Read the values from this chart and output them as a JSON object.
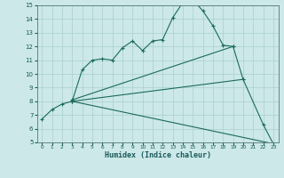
{
  "xlabel": "Humidex (Indice chaleur)",
  "ylabel": "",
  "xlim": [
    -0.5,
    23.5
  ],
  "ylim": [
    5,
    15
  ],
  "xticks": [
    0,
    1,
    2,
    3,
    4,
    5,
    6,
    7,
    8,
    9,
    10,
    11,
    12,
    13,
    14,
    15,
    16,
    17,
    18,
    19,
    20,
    21,
    22,
    23
  ],
  "yticks": [
    5,
    6,
    7,
    8,
    9,
    10,
    11,
    12,
    13,
    14,
    15
  ],
  "bg_color": "#cce8e8",
  "grid_color": "#aacfcf",
  "line_color": "#1a6b5a",
  "curve1_x": [
    0,
    1,
    2,
    3,
    4,
    5,
    6,
    7,
    8,
    9,
    10,
    11,
    12,
    13,
    14,
    15,
    16,
    17,
    18,
    19
  ],
  "curve1_y": [
    6.7,
    7.4,
    7.8,
    8.0,
    10.3,
    11.0,
    11.1,
    11.0,
    11.9,
    12.4,
    11.7,
    12.4,
    12.5,
    14.1,
    15.2,
    15.4,
    14.6,
    13.5,
    12.1,
    12.0
  ],
  "curve2_x": [
    3,
    23
  ],
  "curve2_y": [
    8.0,
    4.9
  ],
  "curve3_x": [
    3,
    20,
    22,
    23
  ],
  "curve3_y": [
    8.0,
    9.6,
    6.3,
    4.9
  ],
  "curve4_x": [
    3,
    19,
    20
  ],
  "curve4_y": [
    8.1,
    12.0,
    9.6
  ]
}
